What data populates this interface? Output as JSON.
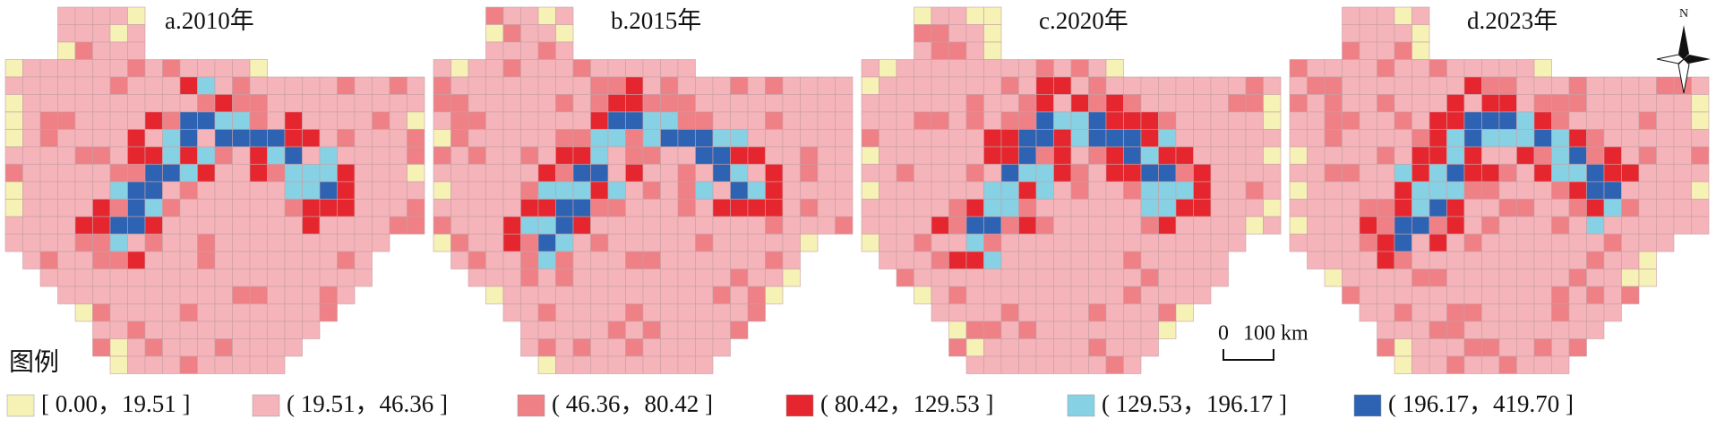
{
  "maps": [
    {
      "title": "a.2010年"
    },
    {
      "title": "b.2015年"
    },
    {
      "title": "c.2020年"
    },
    {
      "title": "d.2023年"
    }
  ],
  "north": "N",
  "scale_bar": {
    "zero": "0",
    "label": "100 km"
  },
  "legend": {
    "title": "图例",
    "items": [
      {
        "label": "[ 0.00，19.51 ]",
        "color": "#f6f1b4"
      },
      {
        "label": "( 19.51，46.36 ]",
        "color": "#f4b4b9"
      },
      {
        "label": "( 46.36，80.42 ]",
        "color": "#ee8086"
      },
      {
        "label": "( 80.42，129.53 ]",
        "color": "#e6262e"
      },
      {
        "label": "( 129.53，196.17 ]",
        "color": "#86d1e4"
      },
      {
        "label": "( 196.17，419.70 ]",
        "color": "#2d63b2"
      }
    ]
  }
}
